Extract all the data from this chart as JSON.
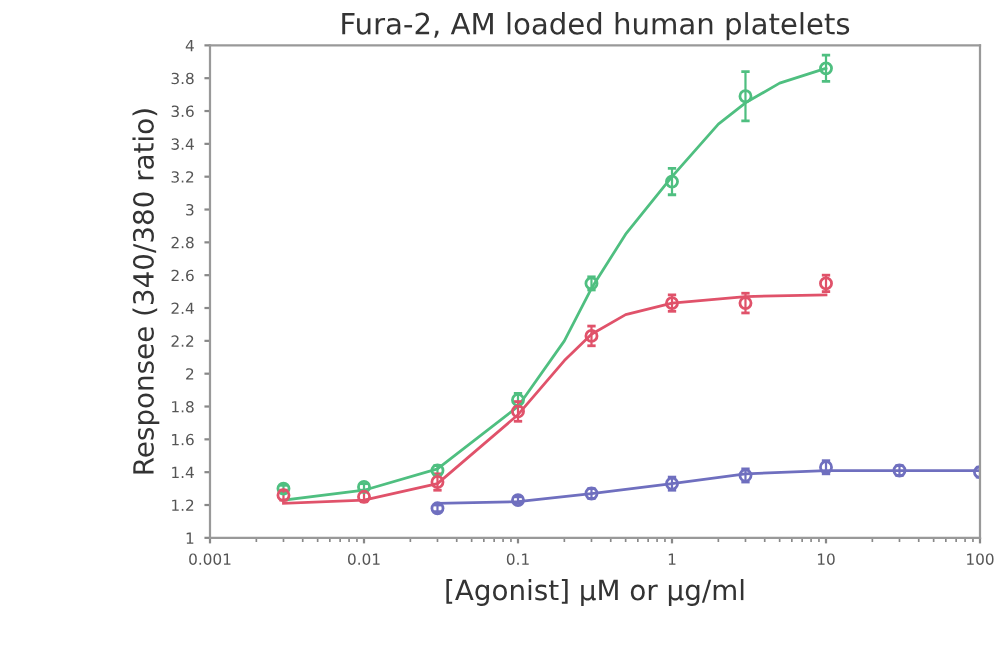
{
  "chart_data": {
    "type": "scatter",
    "title": "Fura-2, AM loaded human platelets",
    "xlabel": "[Agonist] µM or µg/ml",
    "ylabel": "Responsee (340/380 ratio)",
    "log": "x",
    "xlim": [
      0.001,
      100
    ],
    "xticks": [
      0.001,
      0.01,
      0.1,
      1,
      10,
      100
    ],
    "ylim": [
      1,
      4
    ],
    "yticks": [
      1,
      1.2,
      1.4,
      1.6,
      1.8,
      2,
      2.2,
      2.4,
      2.6,
      2.8,
      3,
      3.2,
      3.4,
      3.6,
      3.8,
      4
    ],
    "grid": false,
    "series": [
      {
        "type": "line",
        "marker": "none",
        "color": "#4fbf80",
        "x": [
          0.003,
          0.01,
          0.03,
          0.1,
          0.2,
          0.3,
          0.5,
          1,
          2,
          3,
          5,
          10
        ],
        "values": [
          1.23,
          1.29,
          1.42,
          1.8,
          2.2,
          2.52,
          2.85,
          3.2,
          3.52,
          3.65,
          3.77,
          3.86
        ]
      },
      {
        "type": "line",
        "marker": "none",
        "color": "#e0526a",
        "x": [
          0.003,
          0.01,
          0.03,
          0.1,
          0.2,
          0.3,
          0.5,
          1,
          3,
          10
        ],
        "values": [
          1.21,
          1.23,
          1.33,
          1.75,
          2.08,
          2.24,
          2.36,
          2.43,
          2.47,
          2.48
        ]
      },
      {
        "type": "line",
        "marker": "none",
        "color": "#6f6fbf",
        "x": [
          0.03,
          0.1,
          0.3,
          1,
          3,
          10,
          100
        ],
        "values": [
          1.21,
          1.22,
          1.27,
          1.33,
          1.39,
          1.41,
          1.41
        ]
      },
      {
        "marker": "circle",
        "color": "#4fbf80",
        "x": [
          0.003,
          0.01,
          0.03,
          0.1,
          0.3,
          1,
          3,
          10
        ],
        "values": [
          1.3,
          1.31,
          1.41,
          1.84,
          2.55,
          3.17,
          3.69,
          3.86
        ],
        "errors": [
          0.02,
          0.02,
          0.03,
          0.04,
          0.04,
          0.08,
          0.15,
          0.08
        ]
      },
      {
        "marker": "circle",
        "color": "#e0526a",
        "x": [
          0.003,
          0.01,
          0.03,
          0.1,
          0.3,
          1,
          3,
          10
        ],
        "values": [
          1.26,
          1.25,
          1.34,
          1.77,
          2.23,
          2.43,
          2.43,
          2.55
        ],
        "errors": [
          0.03,
          0.03,
          0.05,
          0.06,
          0.06,
          0.05,
          0.06,
          0.05
        ]
      },
      {
        "marker": "circle",
        "color": "#6f6fbf",
        "x": [
          0.03,
          0.1,
          0.3,
          1,
          3,
          10,
          30,
          100
        ],
        "values": [
          1.18,
          1.23,
          1.27,
          1.33,
          1.38,
          1.43,
          1.41,
          1.4
        ],
        "errors": [
          0.02,
          0.02,
          0.03,
          0.04,
          0.04,
          0.04,
          0.03,
          0.03
        ]
      }
    ]
  }
}
